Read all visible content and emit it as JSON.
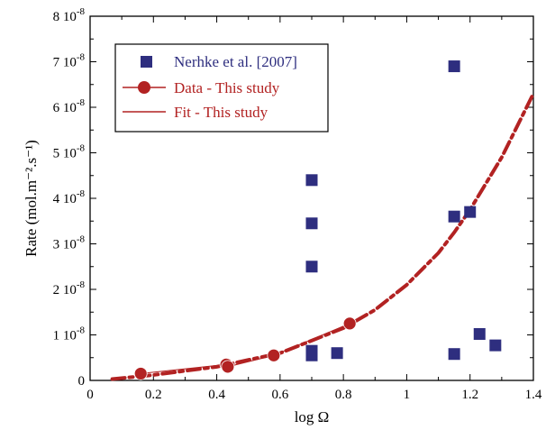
{
  "chart_data": {
    "type": "scatter",
    "xlabel": "log Ω",
    "ylabel": "Rate (mol.m⁻².s⁻¹)",
    "xlim": [
      0,
      1.4
    ],
    "ylim": [
      0,
      8e-08
    ],
    "x_ticks": [
      0,
      0.2,
      0.4,
      0.6,
      0.8,
      1,
      1.2,
      1.4
    ],
    "x_tick_labels": [
      "0",
      "0.2",
      "0.4",
      "0.6",
      "0.8",
      "1",
      "1.2",
      "1.4"
    ],
    "y_ticks": [
      0,
      1e-08,
      2e-08,
      3e-08,
      4e-08,
      5e-08,
      6e-08,
      7e-08,
      8e-08
    ],
    "y_tick_labels": [
      "0",
      "1 10",
      "2 10",
      "3 10",
      "4 10",
      "5 10",
      "6 10",
      "7 10",
      "8 10"
    ],
    "y_tick_exponent": "-8",
    "legend_position": "top-left",
    "colors": {
      "nerhke": "#2e2e7f",
      "this_study": "#b22222"
    },
    "series": [
      {
        "name": "Nerhke et al. [2007]",
        "marker": "square",
        "x": [
          0.7,
          0.7,
          0.7,
          0.7,
          0.7,
          0.78,
          1.15,
          1.15,
          1.15,
          1.2,
          1.23,
          1.28
        ],
        "y": [
          4.4e-08,
          3.45e-08,
          2.5e-08,
          6.5e-09,
          5.5e-09,
          6e-09,
          6.9e-08,
          3.6e-08,
          5.8e-09,
          3.7e-08,
          1.02e-08,
          7.7e-09
        ]
      },
      {
        "name": "Data - This study",
        "marker": "circle",
        "x": [
          0.16,
          0.43,
          0.435,
          0.58,
          0.82
        ],
        "y": [
          1.5e-09,
          3.5e-09,
          3e-09,
          5.5e-09,
          1.25e-08
        ]
      },
      {
        "name": "Fit - This study",
        "line": "dashed",
        "x": [
          0.07,
          0.2,
          0.4,
          0.6,
          0.8,
          0.9,
          1.0,
          1.1,
          1.15,
          1.2,
          1.3,
          1.4
        ],
        "y": [
          3e-10,
          1.2e-09,
          3e-09,
          6e-09,
          1.15e-08,
          1.55e-08,
          2.1e-08,
          2.8e-08,
          3.25e-08,
          3.75e-08,
          4.9e-08,
          6.3e-08
        ]
      }
    ]
  }
}
